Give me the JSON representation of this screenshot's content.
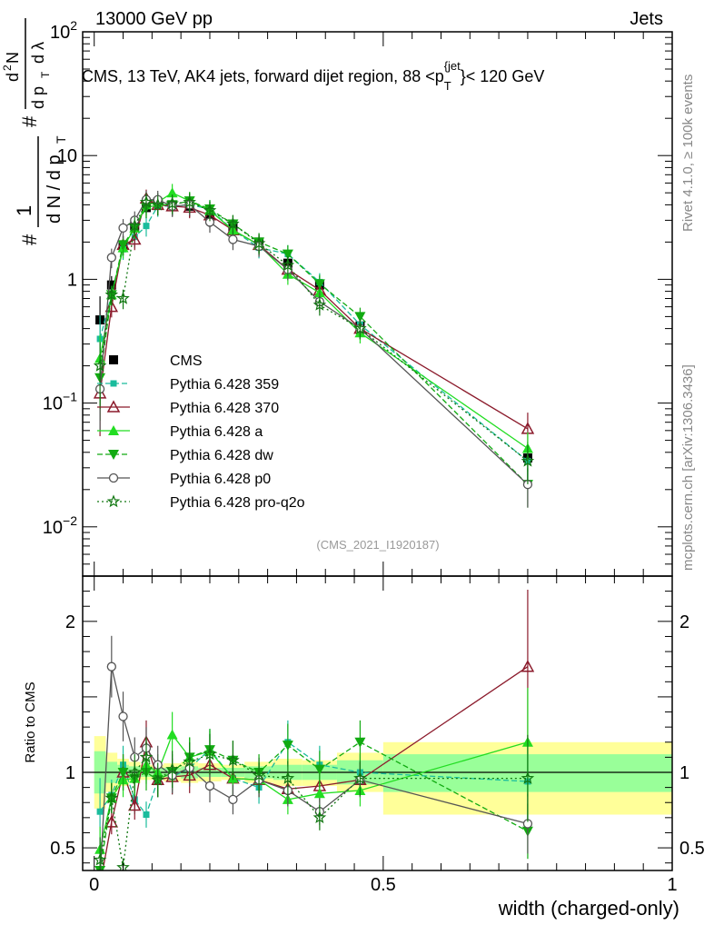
{
  "header": {
    "left": "13000 GeV pp",
    "right": "Jets"
  },
  "side_labels": {
    "rivet": "Rivet 4.1.0, ≥ 100k events",
    "mcplots": "mcplots.cern.ch [arXiv:1306.3436]"
  },
  "chart_data": [
    {
      "type": "line",
      "panel": "main",
      "title": "CMS, 13 TeV, AK4 jets, forward dijet region, 88 <p_T^{jet}< 120 GeV",
      "title_parts": {
        "prefix": "CMS, 13 TeV, AK4 jets, forward dijet region, 88 <p",
        "sub": "T",
        "sup": "{jet",
        "suffix": "}< 120 GeV"
      },
      "ylabel": "1/(dN/dp_T) d²N/(dp_T dλ)",
      "ylabel_parts": {
        "a": "#",
        "b": "1",
        "c": "d N / d p",
        "d": "T",
        "e": "#",
        "f": "d",
        "g": "2",
        "h": "N",
        "i": "d p",
        "j": "T",
        "k": "d λ"
      },
      "yscale": "log",
      "ylim": [
        0.004,
        100
      ],
      "yticks": [
        {
          "value": 0.01,
          "base": "10",
          "exp": "−2"
        },
        {
          "value": 0.1,
          "base": "10",
          "exp": "−1"
        },
        {
          "value": 1,
          "label": "1"
        },
        {
          "value": 10,
          "label": "10"
        },
        {
          "value": 100,
          "base": "10",
          "exp": "2"
        }
      ],
      "xlim": [
        -0.02,
        1.0
      ],
      "watermark": "(CMS_2021_I1920187)",
      "legend_position": "lower-left",
      "x": [
        0.01,
        0.03,
        0.05,
        0.07,
        0.09,
        0.11,
        0.135,
        0.165,
        0.2,
        0.24,
        0.285,
        0.335,
        0.39,
        0.46,
        0.75
      ],
      "series": [
        {
          "name": "CMS",
          "color": "#000000",
          "marker": "square-filled",
          "line": "none",
          "values": [
            0.47,
            0.9,
            1.9,
            2.7,
            3.8,
            4.2,
            4.0,
            3.9,
            3.2,
            2.6,
            2.0,
            1.35,
            0.9,
            0.42,
            0.036
          ]
        },
        {
          "name": "Pythia 6.428 359",
          "color": "#1abc9c",
          "marker": "square-small",
          "line": "dashed",
          "values": [
            0.33,
            0.75,
            1.75,
            2.2,
            2.7,
            3.9,
            3.9,
            4.0,
            3.7,
            2.5,
            1.8,
            1.6,
            0.95,
            0.43,
            0.034
          ]
        },
        {
          "name": "Pythia 6.428 370",
          "color": "#8b1a2b",
          "marker": "triangle-open",
          "line": "solid",
          "values": [
            0.12,
            0.6,
            1.9,
            2.1,
            4.5,
            4.0,
            3.9,
            3.8,
            3.3,
            2.5,
            1.9,
            1.2,
            0.82,
            0.4,
            0.062
          ]
        },
        {
          "name": "Pythia 6.428 a",
          "color": "#22dd22",
          "marker": "triangle-filled",
          "line": "solid",
          "values": [
            0.23,
            0.75,
            1.8,
            2.6,
            4.0,
            4.2,
            5.0,
            4.3,
            3.6,
            2.5,
            1.9,
            1.1,
            0.78,
            0.37,
            0.043
          ]
        },
        {
          "name": "Pythia 6.428 dw",
          "color": "#11aa11",
          "marker": "triangle-down-filled",
          "line": "dashed",
          "values": [
            0.16,
            0.75,
            1.9,
            2.6,
            3.8,
            4.0,
            4.0,
            4.3,
            3.7,
            2.8,
            2.0,
            1.6,
            0.92,
            0.5,
            0.022
          ]
        },
        {
          "name": "Pythia 6.428 p0",
          "color": "#555555",
          "marker": "circle-open",
          "line": "solid",
          "values": [
            0.13,
            1.5,
            2.6,
            3.0,
            4.4,
            4.4,
            3.9,
            4.0,
            2.9,
            2.1,
            1.85,
            1.2,
            0.66,
            0.4,
            0.022
          ]
        },
        {
          "name": "Pythia 6.428 pro-q2o",
          "color": "#117711",
          "marker": "star-open",
          "line": "dotted",
          "values": [
            0.2,
            0.75,
            0.7,
            2.7,
            4.2,
            4.0,
            4.1,
            4.2,
            3.6,
            2.8,
            1.95,
            1.3,
            0.62,
            0.4,
            0.034
          ]
        }
      ]
    },
    {
      "type": "line",
      "panel": "ratio",
      "ylabel": "Ratio to CMS",
      "xlabel": "width (charged-only)",
      "ylim": [
        0.35,
        2.3
      ],
      "yticks": [
        {
          "value": 0.5,
          "label": "0.5"
        },
        {
          "value": 1,
          "label": "1"
        },
        {
          "value": 2,
          "label": "2"
        }
      ],
      "xlim": [
        -0.02,
        1.0
      ],
      "xticks": [
        {
          "value": 0,
          "label": "0"
        },
        {
          "value": 0.5,
          "label": "0.5"
        },
        {
          "value": 1,
          "label": "1"
        }
      ],
      "band_bins": [
        {
          "x0": 0.0,
          "x1": 0.02,
          "inner": [
            0.86,
            1.14
          ],
          "outer": [
            0.76,
            1.24
          ]
        },
        {
          "x0": 0.02,
          "x1": 0.04,
          "inner": [
            0.93,
            1.07
          ],
          "outer": [
            0.87,
            1.13
          ]
        },
        {
          "x0": 0.04,
          "x1": 0.06,
          "inner": [
            0.95,
            1.05
          ],
          "outer": [
            0.91,
            1.09
          ]
        },
        {
          "x0": 0.06,
          "x1": 0.08,
          "inner": [
            0.96,
            1.04
          ],
          "outer": [
            0.93,
            1.07
          ]
        },
        {
          "x0": 0.08,
          "x1": 0.1,
          "inner": [
            0.97,
            1.03
          ],
          "outer": [
            0.95,
            1.05
          ]
        },
        {
          "x0": 0.1,
          "x1": 0.12,
          "inner": [
            0.97,
            1.03
          ],
          "outer": [
            0.95,
            1.05
          ]
        },
        {
          "x0": 0.12,
          "x1": 0.15,
          "inner": [
            0.97,
            1.03
          ],
          "outer": [
            0.94,
            1.06
          ]
        },
        {
          "x0": 0.15,
          "x1": 0.18,
          "inner": [
            0.96,
            1.04
          ],
          "outer": [
            0.93,
            1.07
          ]
        },
        {
          "x0": 0.18,
          "x1": 0.22,
          "inner": [
            0.97,
            1.03
          ],
          "outer": [
            0.94,
            1.06
          ]
        },
        {
          "x0": 0.22,
          "x1": 0.26,
          "inner": [
            0.97,
            1.03
          ],
          "outer": [
            0.95,
            1.05
          ]
        },
        {
          "x0": 0.26,
          "x1": 0.31,
          "inner": [
            0.96,
            1.04
          ],
          "outer": [
            0.93,
            1.07
          ]
        },
        {
          "x0": 0.31,
          "x1": 0.36,
          "inner": [
            0.95,
            1.05
          ],
          "outer": [
            0.91,
            1.09
          ]
        },
        {
          "x0": 0.36,
          "x1": 0.42,
          "inner": [
            0.95,
            1.05
          ],
          "outer": [
            0.91,
            1.08
          ]
        },
        {
          "x0": 0.42,
          "x1": 0.5,
          "inner": [
            0.92,
            1.08
          ],
          "outer": [
            0.87,
            1.13
          ]
        },
        {
          "x0": 0.5,
          "x1": 1.0,
          "inner": [
            0.87,
            1.12
          ],
          "outer": [
            0.72,
            1.2
          ]
        }
      ],
      "series": [
        {
          "name": "Pythia 6.428 359",
          "values": [
            0.74,
            0.85,
            1.05,
            0.82,
            0.72,
            0.95,
            0.97,
            1.03,
            1.15,
            0.96,
            0.9,
            1.2,
            1.05,
            1.0,
            0.94
          ]
        },
        {
          "name": "Pythia 6.428 370",
          "values": [
            0.25,
            0.67,
            1.0,
            0.78,
            1.2,
            0.95,
            0.97,
            0.98,
            1.05,
            0.96,
            0.95,
            0.89,
            0.91,
            0.95,
            1.7
          ]
        },
        {
          "name": "Pythia 6.428 a",
          "values": [
            0.49,
            0.83,
            0.95,
            0.96,
            1.05,
            1.0,
            1.25,
            1.1,
            1.14,
            0.96,
            0.95,
            0.82,
            0.86,
            0.88,
            1.2
          ]
        },
        {
          "name": "Pythia 6.428 dw",
          "values": [
            0.35,
            0.83,
            1.0,
            0.96,
            1.0,
            0.95,
            1.0,
            1.1,
            1.15,
            1.08,
            1.0,
            1.18,
            1.02,
            1.2,
            0.61
          ]
        },
        {
          "name": "Pythia 6.428 p0",
          "values": [
            0.3,
            1.7,
            1.37,
            1.1,
            1.16,
            1.05,
            0.98,
            1.03,
            0.91,
            0.82,
            0.95,
            0.88,
            0.74,
            0.95,
            0.66
          ]
        },
        {
          "name": "Pythia 6.428 pro-q2o",
          "values": [
            0.42,
            0.83,
            0.37,
            1.0,
            1.1,
            0.95,
            1.02,
            1.07,
            1.12,
            1.08,
            0.98,
            0.96,
            0.7,
            0.96,
            0.96
          ]
        }
      ]
    }
  ]
}
